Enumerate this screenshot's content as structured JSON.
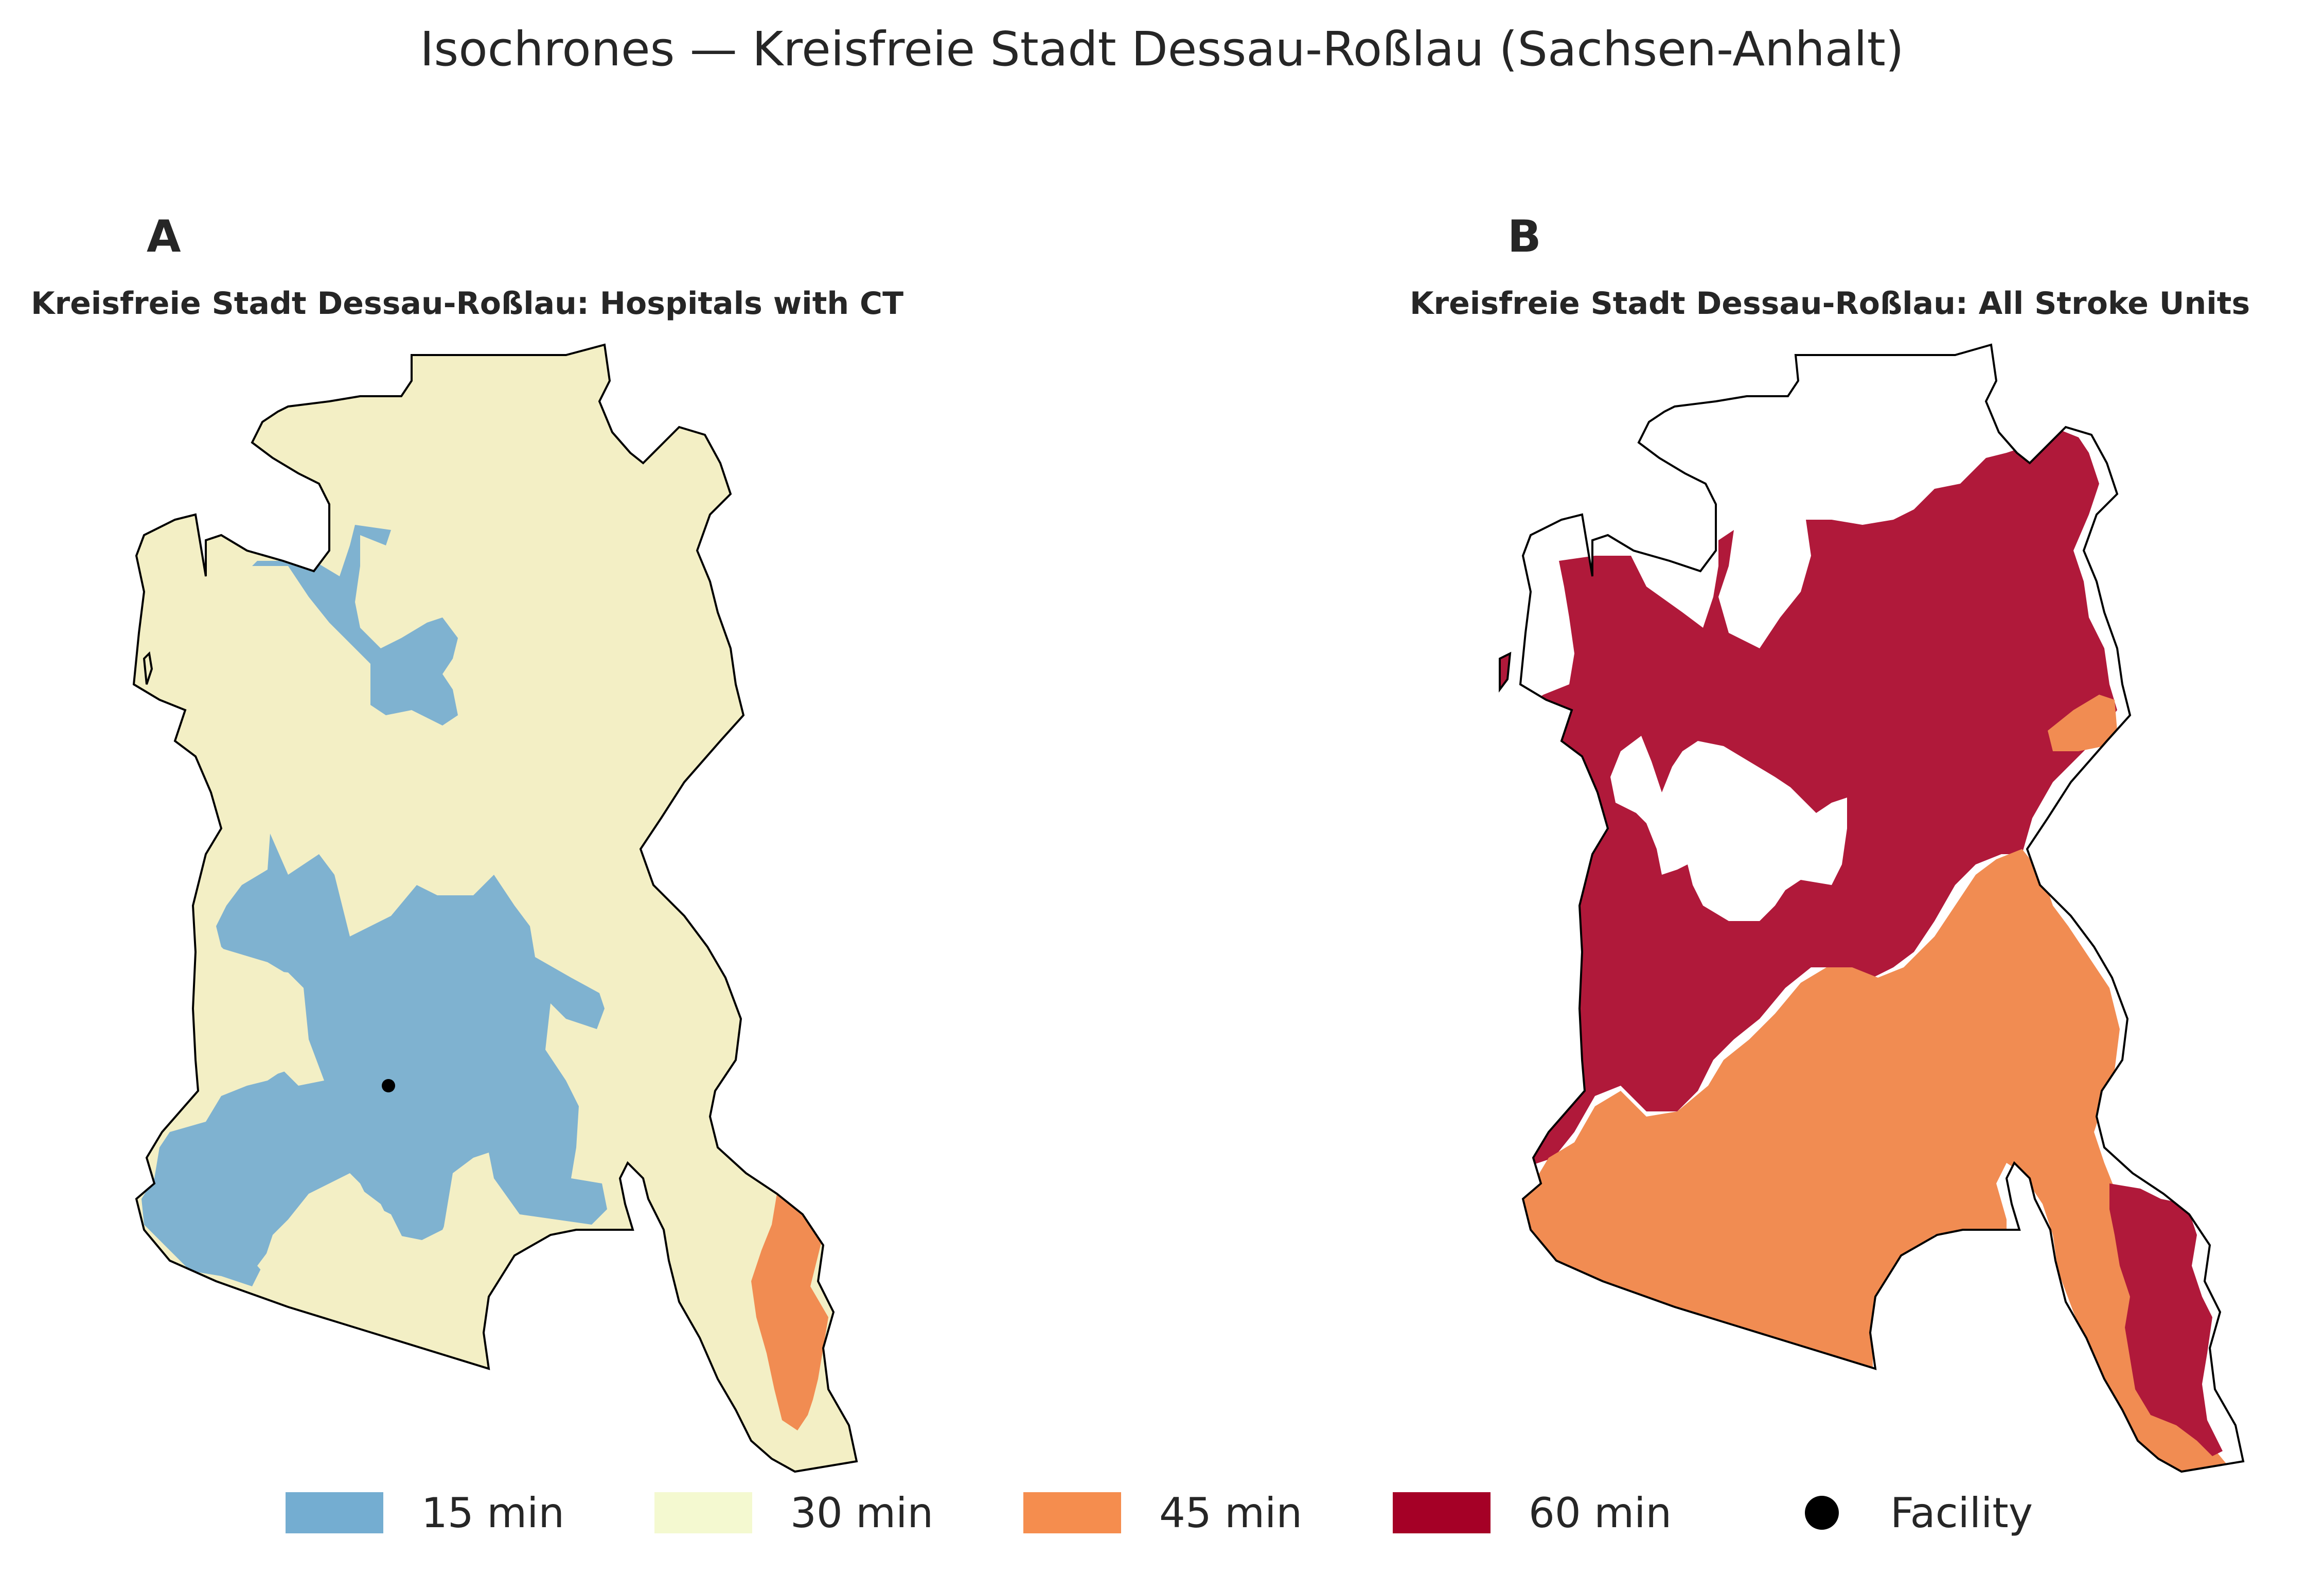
{
  "title": "Isochrones — Kreisfreie Stadt Dessau-Roßlau (Sachsen-Anhalt)",
  "panels": [
    {
      "letter": "A",
      "title": "Kreisfreie Stadt Dessau-Roßlau: Hospitals with CT"
    },
    {
      "letter": "B",
      "title": "Kreisfreie Stadt Dessau-Roßlau: All Stroke Units"
    }
  ],
  "legend": [
    {
      "label": "15 min",
      "color": "#74add1"
    },
    {
      "label": "30 min",
      "color": "#f4f4d0"
    },
    {
      "label": "45 min",
      "color": "#f58d4e"
    },
    {
      "label": "60 min",
      "color": "#a50026"
    },
    {
      "label": "Facility",
      "color": "#000000",
      "marker": "circle"
    }
  ],
  "colors": {
    "zone15": "#7fb2d0",
    "zone30": "#f3efc5",
    "zone45": "#f18c52",
    "zone60": "#b0193a",
    "boundary": "#000000"
  }
}
